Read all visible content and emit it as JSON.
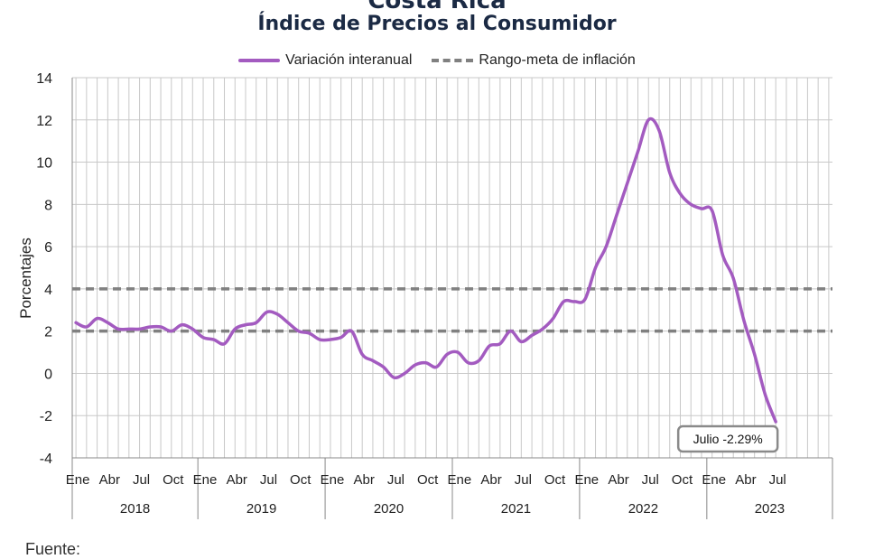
{
  "header": {
    "clipped_title": "Costa Rica",
    "title": "Índice de Precios al Consumidor"
  },
  "chart_data": {
    "type": "line",
    "title": "Índice de Precios al Consumidor",
    "ylabel": "Porcentajes",
    "ylim": [
      -4,
      14
    ],
    "yticks": [
      -4,
      -2,
      0,
      2,
      4,
      6,
      8,
      10,
      12,
      14
    ],
    "month_labels": [
      "Ene",
      "Abr",
      "Jul",
      "Oct"
    ],
    "years": [
      "2018",
      "2019",
      "2020",
      "2021",
      "2022",
      "2023"
    ],
    "grid": true,
    "legend": "top-center",
    "series": [
      {
        "name": "Variación interanual",
        "color": "#a35bc0",
        "values": [
          2.4,
          2.2,
          2.6,
          2.4,
          2.1,
          2.1,
          2.1,
          2.2,
          2.2,
          2.0,
          2.3,
          2.1,
          1.7,
          1.6,
          1.4,
          2.1,
          2.3,
          2.4,
          2.9,
          2.8,
          2.4,
          2.0,
          1.9,
          1.6,
          1.6,
          1.7,
          2.0,
          0.9,
          0.6,
          0.3,
          -0.2,
          0.0,
          0.4,
          0.5,
          0.3,
          0.9,
          1.0,
          0.5,
          0.6,
          1.3,
          1.4,
          2.0,
          1.5,
          1.8,
          2.1,
          2.6,
          3.4,
          3.4,
          3.5,
          5.0,
          6.0,
          7.5,
          9.0,
          10.5,
          12.0,
          11.5,
          9.5,
          8.5,
          8.0,
          7.8,
          7.7,
          5.6,
          4.5,
          2.5,
          0.9,
          -1.0,
          -2.29
        ],
        "note": "Julio -2.29%"
      },
      {
        "name": "Rango-meta de inflación",
        "color": "#808080",
        "dashed": true,
        "bands": [
          2,
          4
        ]
      }
    ]
  },
  "footer": {
    "cut_text": "Fuente:"
  }
}
